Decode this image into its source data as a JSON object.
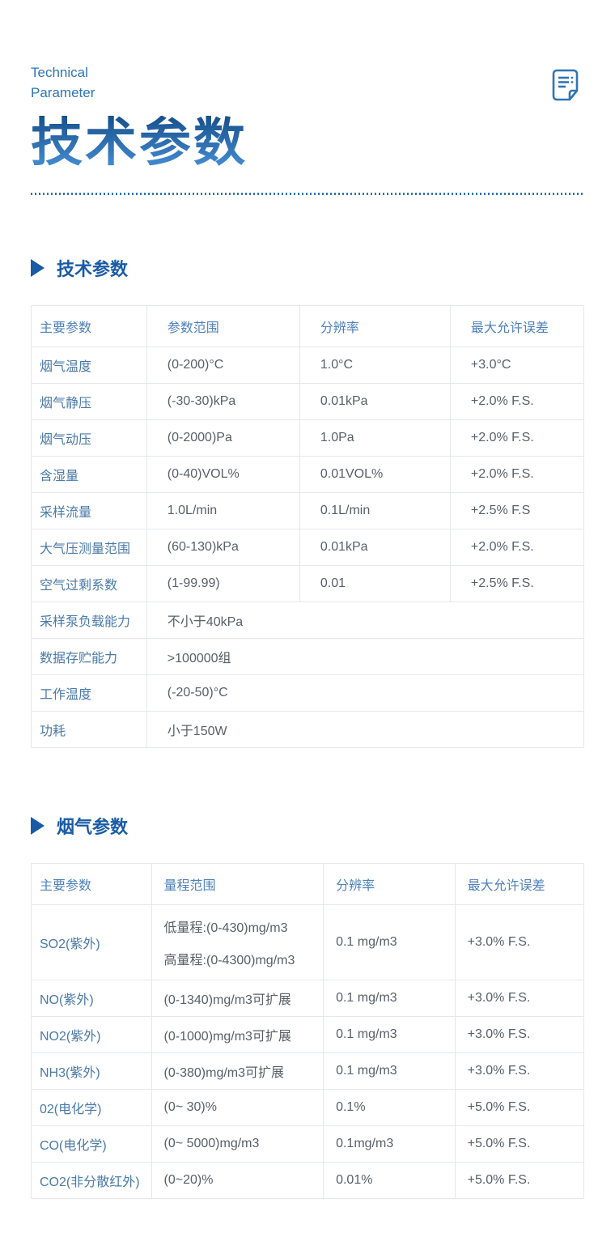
{
  "header": {
    "eyebrow": [
      "Technical",
      "Parameter"
    ],
    "title": "技术参数",
    "icon": "document-list-icon"
  },
  "colors": {
    "primary_blue": "#2e75b6",
    "heading_blue": "#1a5ba6",
    "title_gradient_top": "#17508c",
    "title_gradient_bottom": "#4189ce",
    "first_column_text": "#4a7aa8",
    "cell_text": "#585f66",
    "table_border": "#e4e8ed"
  },
  "sections": [
    {
      "heading": "技术参数",
      "columns": [
        "主要参数",
        "参数范围",
        "分辨率",
        "最大允许误差"
      ],
      "rows": [
        [
          "烟气温度",
          "(0-200)°C",
          "1.0°C",
          "+3.0°C"
        ],
        [
          "烟气静压",
          "(-30-30)kPa",
          "0.01kPa",
          "+2.0% F.S."
        ],
        [
          "烟气动压",
          "(0-2000)Pa",
          "1.0Pa",
          "+2.0% F.S."
        ],
        [
          "含湿量",
          "(0-40)VOL%",
          "0.01VOL%",
          "+2.0% F.S."
        ],
        [
          "采样流量",
          "1.0L/min",
          "0.1L/min",
          "+2.5% F.S"
        ],
        [
          "大气压测量范围",
          "(60-130)kPa",
          "0.01kPa",
          "+2.0% F.S."
        ],
        [
          "空气过剩系数",
          "(1-99.99)",
          "0.01",
          "+2.5% F.S."
        ],
        [
          "采样泵负载能力",
          "不小于40kPa"
        ],
        [
          "数据存贮能力",
          ">100000组"
        ],
        [
          "工作温度",
          "(-20-50)°C"
        ],
        [
          "功耗",
          "小于150W"
        ]
      ]
    },
    {
      "heading": "烟气参数",
      "columns": [
        "主要参数",
        "量程范围",
        "分辨率",
        "最大允许误差"
      ],
      "rows": [
        [
          "SO2(紫外)",
          [
            "低量程:(0-430)mg/m3",
            "高量程:(0-4300)mg/m3"
          ],
          "0.1 mg/m3",
          "+3.0% F.S."
        ],
        [
          "NO(紫外)",
          "(0-1340)mg/m3可扩展",
          "0.1 mg/m3",
          "+3.0% F.S."
        ],
        [
          "NO2(紫外)",
          "(0-1000)mg/m3可扩展",
          "0.1 mg/m3",
          "+3.0% F.S."
        ],
        [
          "NH3(紫外)",
          "(0-380)mg/m3可扩展",
          "0.1 mg/m3",
          "+3.0% F.S."
        ],
        [
          "02(电化学)",
          "(0~ 30)%",
          "0.1%",
          "+5.0% F.S."
        ],
        [
          "CO(电化学)",
          "(0~ 5000)mg/m3",
          "0.1mg/m3",
          "+5.0% F.S."
        ],
        [
          "CO2(非分散红外)",
          "(0~20)%",
          "0.01%",
          "+5.0% F.S."
        ]
      ]
    }
  ]
}
